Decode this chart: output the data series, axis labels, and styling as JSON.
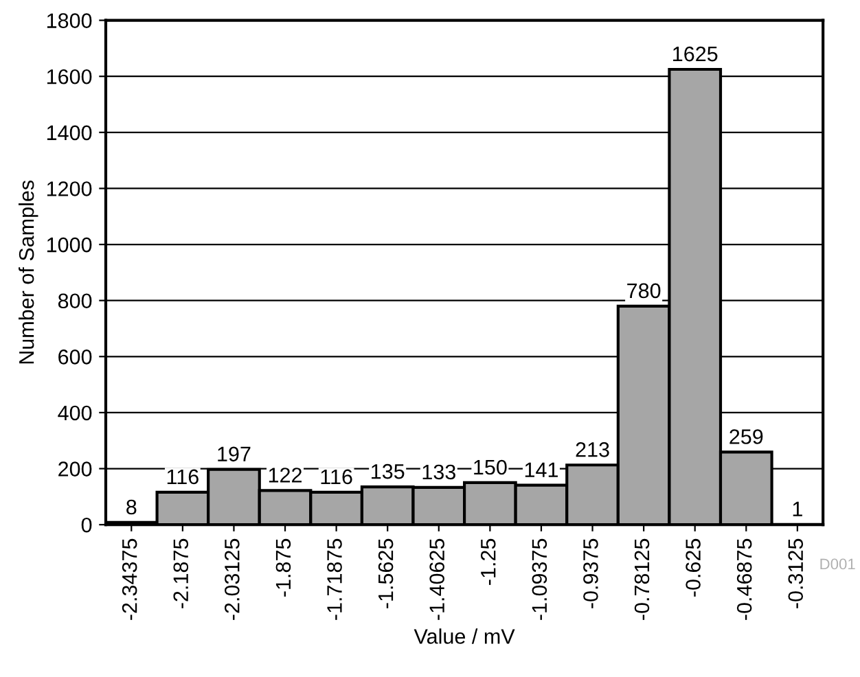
{
  "chart_data": {
    "type": "bar",
    "xlabel": "Value / mV",
    "ylabel": "Number of Samples",
    "categories": [
      "-2.34375",
      "-2.1875",
      "-2.03125",
      "-1.875",
      "-1.71875",
      "-1.5625",
      "-1.40625",
      "-1.25",
      "-1.09375",
      "-0.9375",
      "-0.78125",
      "-0.625",
      "-0.46875",
      "-0.3125"
    ],
    "values": [
      8,
      116,
      197,
      122,
      116,
      135,
      133,
      150,
      141,
      213,
      780,
      1625,
      259,
      1
    ],
    "color": "#a6a6a6",
    "data_labels": true,
    "grid": "y",
    "ylim": [
      0,
      1800
    ],
    "yticks": [
      0,
      200,
      400,
      600,
      800,
      1000,
      1200,
      1400,
      1600,
      1800
    ],
    "annotations": [
      "D001"
    ]
  }
}
